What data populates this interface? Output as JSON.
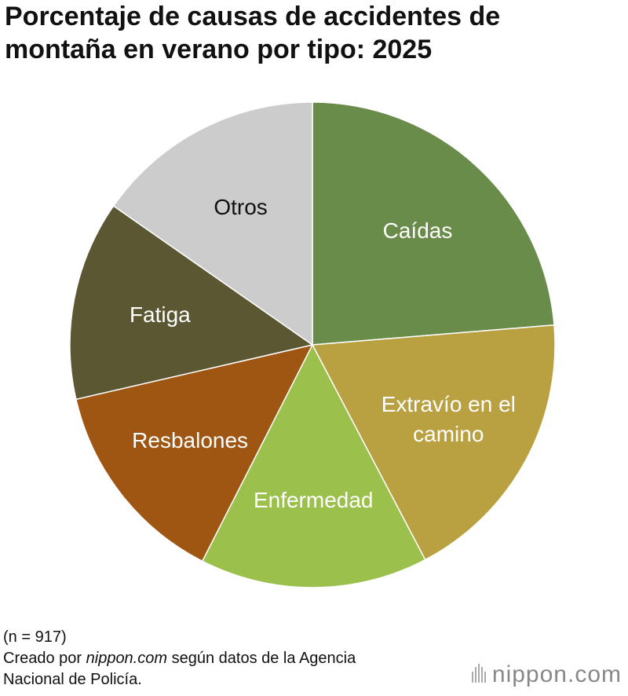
{
  "chart_data": {
    "type": "pie",
    "title": "Porcentaje de causas de accidentes de montaña en verano por tipo: 2025",
    "categories": [
      "Caídas",
      "Extravío en el camino",
      "Enfermedad",
      "Resbalones",
      "Fatiga",
      "Otros"
    ],
    "values": [
      23.7,
      18.6,
      15.2,
      13.9,
      13.3,
      15.3
    ],
    "colors": [
      "#6a8c4a",
      "#b9a040",
      "#9bc04c",
      "#9e5612",
      "#5c5733",
      "#cccccc"
    ],
    "label_colors": [
      "#ffffff",
      "#ffffff",
      "#ffffff",
      "#ffffff",
      "#ffffff",
      "#111111"
    ],
    "note": "(n = 917)",
    "source": [
      "Creado por ",
      "nippon.com",
      " según datos de la Agencia Nacional de Policía."
    ],
    "logo": "nippon.com"
  }
}
